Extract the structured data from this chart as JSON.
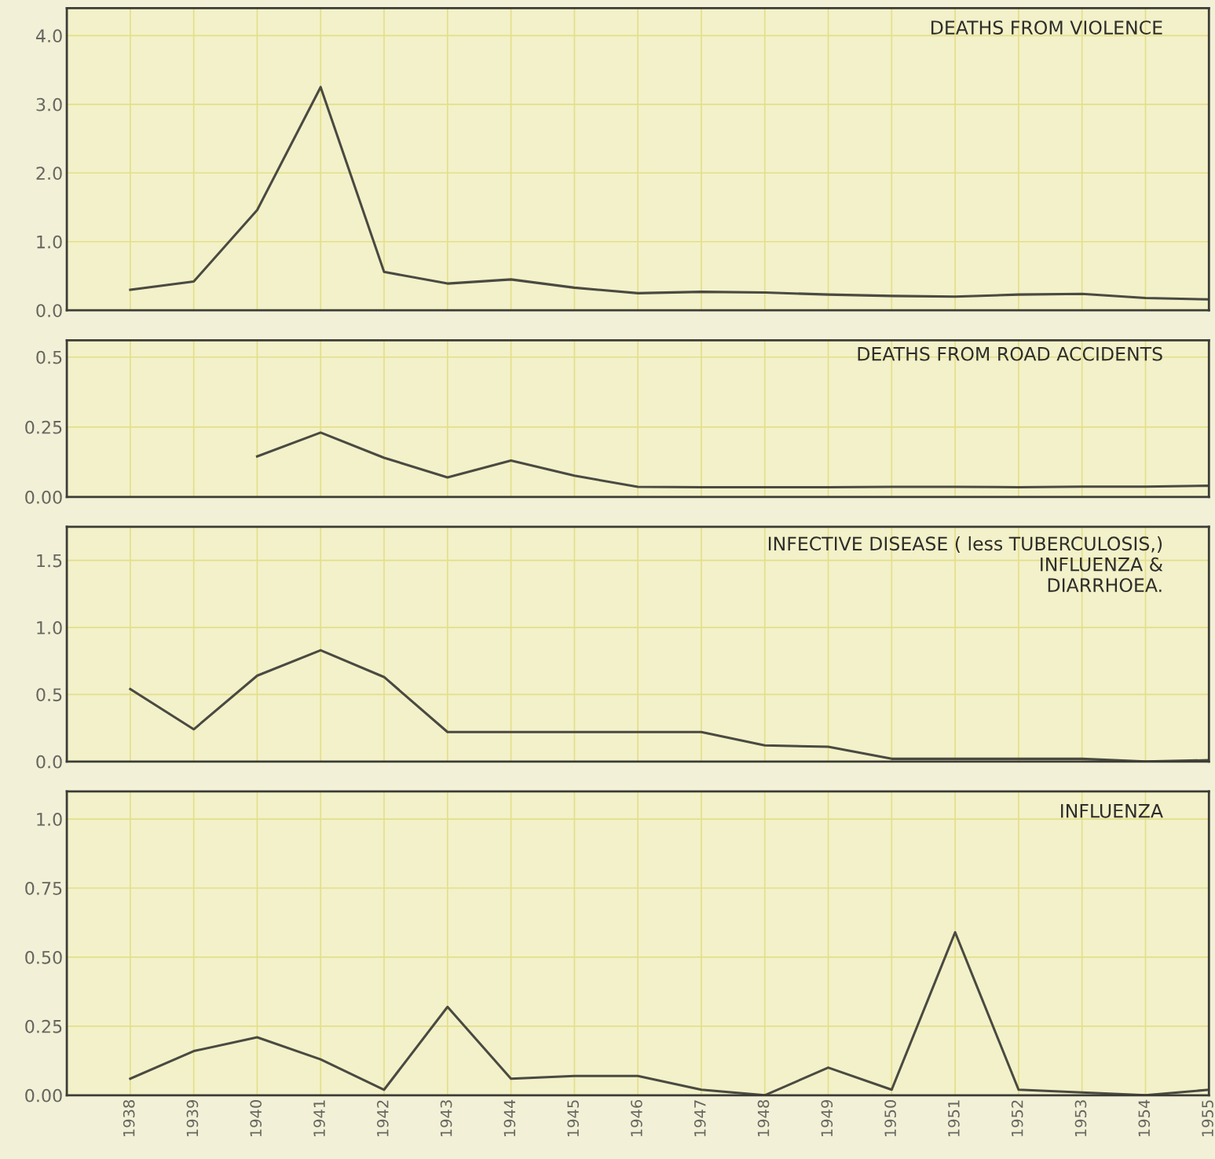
{
  "chart_data": [
    {
      "type": "line",
      "annotations": [
        "DEATHS FROM VIOLENCE"
      ],
      "x": [
        1938,
        1939,
        1940,
        1941,
        1942,
        1943,
        1944,
        1945,
        1946,
        1947,
        1948,
        1949,
        1950,
        1951,
        1952,
        1953,
        1954,
        1955
      ],
      "series": [
        {
          "color": "#4a4a42",
          "values": [
            0.3,
            0.42,
            1.46,
            3.25,
            0.56,
            0.39,
            0.45,
            0.33,
            0.25,
            0.27,
            0.26,
            0.23,
            0.21,
            0.2,
            0.23,
            0.24,
            0.18,
            0.16
          ]
        }
      ],
      "xlim": [
        1937.0,
        1955.0
      ],
      "ylim": [
        0,
        4.4
      ],
      "xticks": [
        1938,
        1939,
        1940,
        1941,
        1942,
        1943,
        1944,
        1945,
        1946,
        1947,
        1948,
        1949,
        1950,
        1951,
        1952,
        1953,
        1954,
        1955
      ],
      "yticks": [
        {
          "value": 0,
          "label": "0.0"
        },
        {
          "value": 1,
          "label": "1.0"
        },
        {
          "value": 2,
          "label": "2.0"
        },
        {
          "value": 3,
          "label": "3.0"
        },
        {
          "value": 4,
          "label": "4.0"
        }
      ],
      "tick_labels": "y",
      "grid": true,
      "line_style": "solid",
      "marker": "none"
    },
    {
      "type": "line",
      "annotations": [
        "DEATHS FROM ROAD ACCIDENTS"
      ],
      "x": [
        1940,
        1941,
        1942,
        1943,
        1944,
        1945,
        1946,
        1947,
        1948,
        1949,
        1950,
        1951,
        1952,
        1953,
        1954,
        1955
      ],
      "series": [
        {
          "color": "#4a4a42",
          "values": [
            0.145,
            0.23,
            0.14,
            0.07,
            0.13,
            0.076,
            0.036,
            0.035,
            0.035,
            0.035,
            0.036,
            0.036,
            0.035,
            0.037,
            0.037,
            0.04
          ]
        }
      ],
      "xlim": [
        1937.0,
        1955.0
      ],
      "ylim": [
        0,
        0.56
      ],
      "xticks": [
        1938,
        1939,
        1940,
        1941,
        1942,
        1943,
        1944,
        1945,
        1946,
        1947,
        1948,
        1949,
        1950,
        1951,
        1952,
        1953,
        1954,
        1955
      ],
      "yticks": [
        {
          "value": 0,
          "label": "0.00"
        },
        0.25,
        0.5
      ],
      "tick_labels": "y",
      "grid": true,
      "line_style": "solid",
      "marker": "none"
    },
    {
      "type": "line",
      "annotations": [
        "INFECTIVE DISEASE ( less TUBERCULOSIS,)\nINFLUENZA &\nDIARRHOEA."
      ],
      "x": [
        1938,
        1939,
        1940,
        1941,
        1942,
        1943,
        1944,
        1945,
        1946,
        1947,
        1948,
        1949,
        1950,
        1951,
        1952,
        1953,
        1954,
        1955
      ],
      "series": [
        {
          "color": "#4a4a42",
          "values": [
            0.54,
            0.24,
            0.64,
            0.83,
            0.63,
            0.22,
            0.22,
            0.22,
            0.22,
            0.22,
            0.12,
            0.11,
            0.02,
            0.02,
            0.02,
            0.02,
            0.0,
            0.01
          ]
        }
      ],
      "xlim": [
        1937.0,
        1955.0
      ],
      "ylim": [
        0,
        1.75
      ],
      "xticks": [
        1938,
        1939,
        1940,
        1941,
        1942,
        1943,
        1944,
        1945,
        1946,
        1947,
        1948,
        1949,
        1950,
        1951,
        1952,
        1953,
        1954,
        1955
      ],
      "yticks": [
        {
          "value": 0,
          "label": "0.0"
        },
        0.5,
        {
          "value": 1,
          "label": "1.0"
        },
        1.5
      ],
      "tick_labels": "y",
      "grid": true,
      "line_style": "solid",
      "marker": "none"
    },
    {
      "type": "line",
      "annotations": [
        "INFLUENZA"
      ],
      "x": [
        1938,
        1939,
        1940,
        1941,
        1942,
        1943,
        1944,
        1945,
        1946,
        1947,
        1948,
        1949,
        1950,
        1951,
        1952,
        1953,
        1954,
        1955
      ],
      "series": [
        {
          "color": "#4a4a42",
          "values": [
            0.06,
            0.16,
            0.21,
            0.13,
            0.02,
            0.32,
            0.06,
            0.07,
            0.07,
            0.02,
            0.0,
            0.1,
            0.02,
            0.59,
            0.02,
            0.01,
            0.0,
            0.02
          ]
        }
      ],
      "xlim": [
        1937.0,
        1955.0
      ],
      "ylim": [
        0,
        1.1
      ],
      "xticks": [
        1938,
        1939,
        1940,
        1941,
        1942,
        1943,
        1944,
        1945,
        1946,
        1947,
        1948,
        1949,
        1950,
        1951,
        1952,
        1953,
        1954,
        1955
      ],
      "yticks": [
        {
          "value": 0,
          "label": "0.00"
        },
        0.25,
        {
          "value": 0.5,
          "label": "0.50"
        },
        0.75,
        {
          "value": 1,
          "label": "1.0"
        }
      ],
      "grid": true,
      "line_style": "solid",
      "marker": "none"
    }
  ]
}
